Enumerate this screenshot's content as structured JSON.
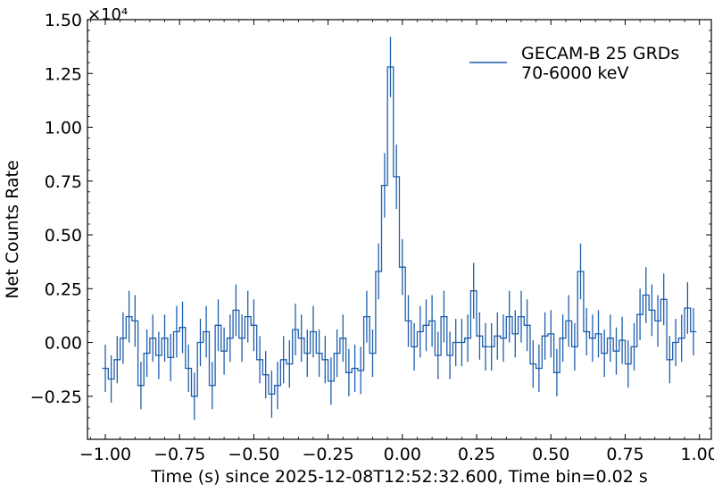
{
  "chart_data": {
    "type": "line",
    "style": "step-with-errorbars",
    "title": "",
    "xlabel": "Time (s) since 2025-12-08T12:52:32.600, Time bin=0.02 s",
    "ylabel": "Net Counts Rate",
    "y_scale_label": "×10⁴",
    "y_scale_factor": 10000,
    "xlim": [
      -1.06,
      1.04
    ],
    "ylim": [
      -0.45,
      1.5
    ],
    "x_ticks": [
      -1.0,
      -0.75,
      -0.5,
      -0.25,
      0.0,
      0.25,
      0.5,
      0.75,
      1.0
    ],
    "x_tick_labels": [
      "−1.00",
      "−0.75",
      "−0.50",
      "−0.25",
      "0.00",
      "0.25",
      "0.50",
      "0.75",
      "1.00"
    ],
    "y_ticks": [
      -0.25,
      0.0,
      0.25,
      0.5,
      0.75,
      1.0,
      1.25,
      1.5
    ],
    "y_tick_labels": [
      "−0.25",
      "0.00",
      "0.25",
      "0.50",
      "0.75",
      "1.00",
      "1.25",
      "1.50"
    ],
    "grid": false,
    "legend": {
      "position": "top-right",
      "entries": [
        {
          "label_line1": "GECAM-B 25 GRDs",
          "label_line2": "70-6000 keV",
          "color": "#1f5fad"
        }
      ]
    },
    "series": [
      {
        "name": "GECAM-B 25 GRDs 70-6000 keV",
        "color": "#1f5fad",
        "bin_width": 0.02,
        "x": [
          -1.0,
          -0.98,
          -0.96,
          -0.94,
          -0.92,
          -0.9,
          -0.88,
          -0.86,
          -0.84,
          -0.82,
          -0.8,
          -0.78,
          -0.76,
          -0.74,
          -0.72,
          -0.7,
          -0.68,
          -0.66,
          -0.64,
          -0.62,
          -0.6,
          -0.58,
          -0.56,
          -0.54,
          -0.52,
          -0.5,
          -0.48,
          -0.46,
          -0.44,
          -0.42,
          -0.4,
          -0.38,
          -0.36,
          -0.34,
          -0.32,
          -0.3,
          -0.28,
          -0.26,
          -0.24,
          -0.22,
          -0.2,
          -0.18,
          -0.16,
          -0.14,
          -0.12,
          -0.1,
          -0.08,
          -0.06,
          -0.04,
          -0.02,
          0.0,
          0.02,
          0.04,
          0.06,
          0.08,
          0.1,
          0.12,
          0.14,
          0.16,
          0.18,
          0.2,
          0.22,
          0.24,
          0.26,
          0.28,
          0.3,
          0.32,
          0.34,
          0.36,
          0.38,
          0.4,
          0.42,
          0.44,
          0.46,
          0.48,
          0.5,
          0.52,
          0.54,
          0.56,
          0.58,
          0.6,
          0.62,
          0.64,
          0.66,
          0.68,
          0.7,
          0.72,
          0.74,
          0.76,
          0.78,
          0.8,
          0.82,
          0.84,
          0.86,
          0.88,
          0.9,
          0.92,
          0.94,
          0.96,
          0.98
        ],
        "y": [
          -0.12,
          -0.17,
          -0.08,
          0.02,
          0.12,
          0.1,
          -0.2,
          -0.05,
          0.02,
          -0.06,
          0.02,
          -0.07,
          0.05,
          0.07,
          -0.12,
          -0.25,
          0.0,
          0.05,
          -0.2,
          0.08,
          -0.04,
          0.02,
          0.15,
          0.02,
          0.12,
          0.08,
          -0.08,
          -0.15,
          -0.24,
          -0.2,
          -0.08,
          -0.1,
          0.06,
          0.02,
          -0.05,
          0.05,
          -0.05,
          -0.08,
          -0.18,
          -0.05,
          0.02,
          -0.14,
          -0.12,
          -0.13,
          0.12,
          -0.05,
          0.33,
          0.73,
          1.28,
          0.77,
          0.35,
          0.1,
          -0.02,
          0.05,
          0.08,
          0.1,
          -0.06,
          0.12,
          -0.06,
          0.0,
          0.0,
          0.02,
          0.24,
          0.03,
          -0.02,
          -0.02,
          0.03,
          0.02,
          0.12,
          0.04,
          0.12,
          0.08,
          -0.1,
          -0.12,
          0.03,
          0.04,
          -0.14,
          0.02,
          0.1,
          -0.02,
          0.33,
          0.05,
          0.02,
          0.04,
          -0.05,
          0.02,
          -0.04,
          0.01,
          -0.1,
          -0.02,
          0.13,
          0.22,
          0.15,
          0.1,
          0.2,
          -0.08,
          0.0,
          0.02,
          0.16,
          0.05
        ],
        "err": [
          0.11,
          0.11,
          0.11,
          0.12,
          0.12,
          0.12,
          0.11,
          0.11,
          0.11,
          0.11,
          0.11,
          0.11,
          0.12,
          0.12,
          0.11,
          0.11,
          0.11,
          0.12,
          0.11,
          0.12,
          0.11,
          0.11,
          0.12,
          0.11,
          0.12,
          0.12,
          0.11,
          0.11,
          0.11,
          0.11,
          0.11,
          0.11,
          0.12,
          0.11,
          0.11,
          0.12,
          0.11,
          0.11,
          0.11,
          0.11,
          0.11,
          0.11,
          0.11,
          0.11,
          0.12,
          0.11,
          0.13,
          0.15,
          0.14,
          0.15,
          0.13,
          0.12,
          0.11,
          0.12,
          0.12,
          0.12,
          0.11,
          0.12,
          0.11,
          0.11,
          0.11,
          0.11,
          0.13,
          0.11,
          0.11,
          0.11,
          0.11,
          0.11,
          0.12,
          0.11,
          0.12,
          0.12,
          0.11,
          0.11,
          0.11,
          0.11,
          0.11,
          0.11,
          0.12,
          0.11,
          0.13,
          0.11,
          0.11,
          0.11,
          0.11,
          0.11,
          0.11,
          0.11,
          0.11,
          0.11,
          0.12,
          0.13,
          0.12,
          0.12,
          0.12,
          0.11,
          0.11,
          0.11,
          0.12,
          0.11
        ]
      }
    ]
  }
}
